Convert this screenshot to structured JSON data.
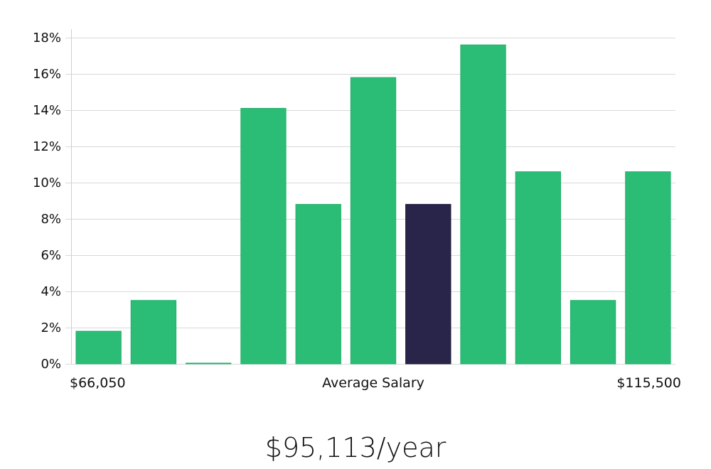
{
  "colors": {
    "bar": "#2bbd76",
    "bar_stroke": "#22b06a",
    "highlight": "#29244a",
    "highlight_stroke": "#1b1738",
    "grid": "#d9d9d9"
  },
  "chart_data": {
    "type": "bar",
    "title": "",
    "xlabel": "Average Salary",
    "ylabel": "",
    "x_range_labels": {
      "min": "$66,050",
      "max": "$115,500"
    },
    "ylim": [
      0,
      18
    ],
    "yticks": [
      0,
      2,
      4,
      6,
      8,
      10,
      12,
      14,
      16,
      18
    ],
    "ytick_format": "%",
    "grid": true,
    "values": [
      1.8,
      3.5,
      0.0,
      14.1,
      8.8,
      15.8,
      8.8,
      17.6,
      10.6,
      3.5,
      10.6
    ],
    "highlight_index": 6
  },
  "summary": {
    "value": "$95,113/year"
  }
}
